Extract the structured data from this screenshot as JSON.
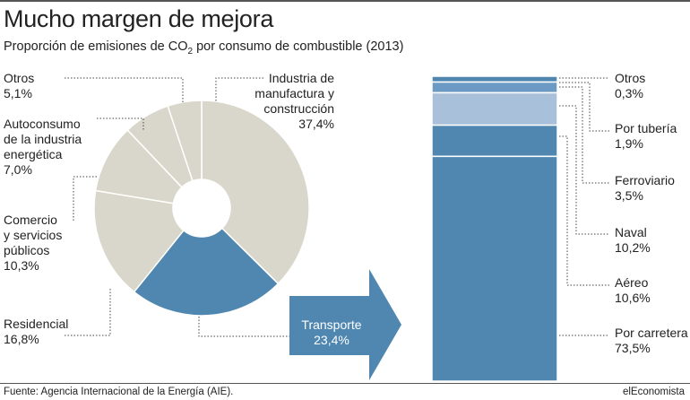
{
  "title": "Mucho margen de mejora",
  "subtitle_prefix": "Proporción de emisiones de CO",
  "subtitle_sub": "2",
  "subtitle_suffix": " por consumo de combustible (2013)",
  "source": "Fuente: Agencia Internacional de la Energía (AIE).",
  "brand": "elEconomista",
  "colors": {
    "gray": "#d9d7cb",
    "transport": "#4f87b1",
    "light_blue_1": "#a9c0da",
    "light_blue_2": "#6c9ac5",
    "leader": "#444444"
  },
  "chart_data": [
    {
      "type": "pie",
      "subtype": "donut",
      "categories": [
        {
          "label_lines": [
            "Industria de",
            "manufactura y",
            "construcción"
          ],
          "value_text": "37,4%"
        },
        {
          "label_lines": [
            "Transporte"
          ],
          "value_text": "23,4%"
        },
        {
          "label_lines": [
            "Residencial"
          ],
          "value_text": "16,8%"
        },
        {
          "label_lines": [
            "Comercio",
            "y servicios",
            "públicos"
          ],
          "value_text": "10,3%"
        },
        {
          "label_lines": [
            "Autoconsumo",
            "de la industria",
            "energética"
          ],
          "value_text": "7,0%"
        },
        {
          "label_lines": [
            "Otros"
          ],
          "value_text": "5,1%"
        }
      ],
      "values": [
        37.4,
        23.4,
        16.8,
        10.3,
        7.0,
        5.1
      ],
      "highlight": "Transporte"
    },
    {
      "type": "bar",
      "subtype": "stacked-100",
      "categories": [
        {
          "label_lines": [
            "Otros"
          ],
          "value_text": "0,3%"
        },
        {
          "label_lines": [
            "Por tubería"
          ],
          "value_text": "1,9%"
        },
        {
          "label_lines": [
            "Ferroviario"
          ],
          "value_text": "3,5%"
        },
        {
          "label_lines": [
            "Naval"
          ],
          "value_text": "10,2%"
        },
        {
          "label_lines": [
            "Aéreo"
          ],
          "value_text": "10,6%"
        },
        {
          "label_lines": [
            "Por carretera"
          ],
          "value_text": "73,5%"
        }
      ],
      "values": [
        0.3,
        1.9,
        3.5,
        10.2,
        10.6,
        73.5
      ]
    }
  ]
}
